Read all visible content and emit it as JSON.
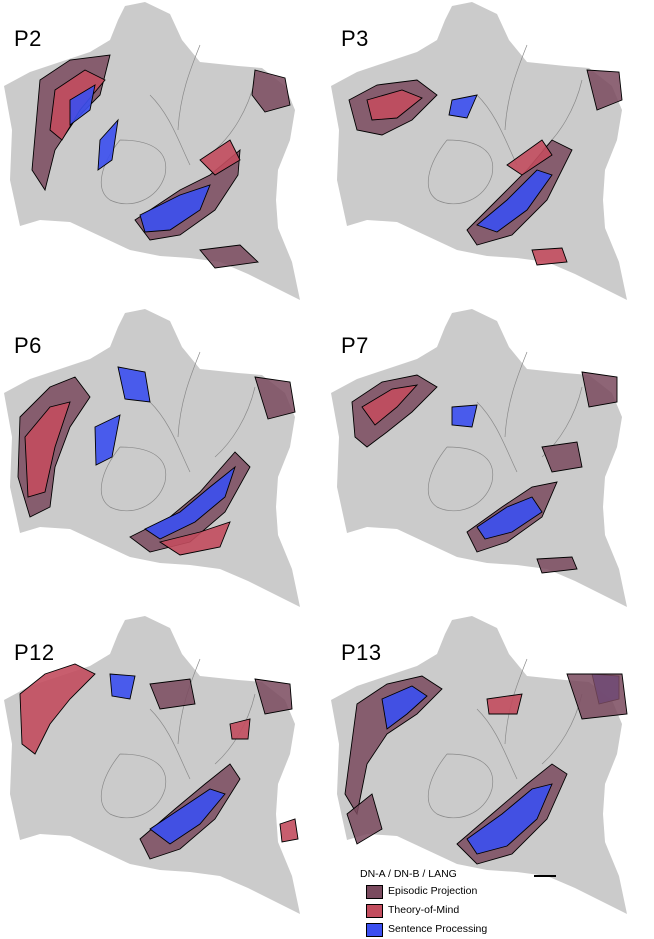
{
  "panels": [
    {
      "label": "P2"
    },
    {
      "label": "P3"
    },
    {
      "label": "P6"
    },
    {
      "label": "P7"
    },
    {
      "label": "P12"
    },
    {
      "label": "P13"
    }
  ],
  "legend": {
    "title": "DN-A / DN-B / LANG",
    "items": [
      {
        "label": "Episodic Projection",
        "color": "#7a4a5e"
      },
      {
        "label": "Theory-of-Mind",
        "color": "#c24d5e"
      },
      {
        "label": "Sentence Processing",
        "color": "#3b4ff0"
      }
    ]
  },
  "colors": {
    "cortex": "#cbcbcb",
    "episodic": "#7a4a5e",
    "tom": "#c24d5e",
    "sentence": "#3b4ff0",
    "outline": "#000000"
  }
}
